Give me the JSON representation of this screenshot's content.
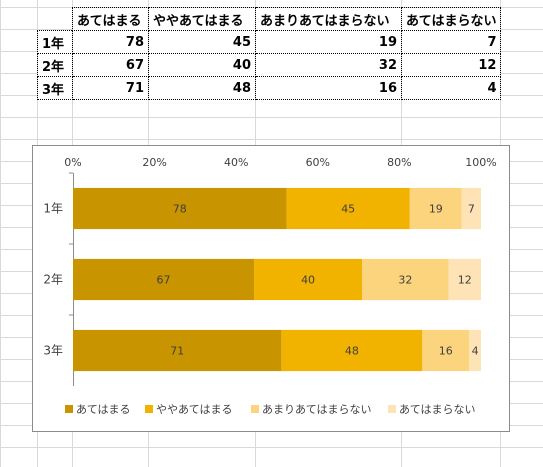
{
  "table": {
    "headers": [
      "",
      "あてはまる",
      "ややあてはまる",
      "あまりあてはまらない",
      "あてはまらない"
    ],
    "rows": [
      {
        "label": "1年",
        "values": [
          78,
          45,
          19,
          7
        ]
      },
      {
        "label": "2年",
        "values": [
          67,
          40,
          32,
          12
        ]
      },
      {
        "label": "3年",
        "values": [
          71,
          48,
          16,
          4
        ]
      }
    ]
  },
  "chart_data": {
    "type": "bar",
    "orientation": "horizontal",
    "stacking": "percent",
    "categories": [
      "1年",
      "2年",
      "3年"
    ],
    "series": [
      {
        "name": "あてはまる",
        "values": [
          78,
          67,
          71
        ],
        "color": "#c89400"
      },
      {
        "name": "ややあてはまる",
        "values": [
          45,
          40,
          48
        ],
        "color": "#f2b200"
      },
      {
        "name": "あまりあてはまらない",
        "values": [
          19,
          32,
          16
        ],
        "color": "#fcd47e"
      },
      {
        "name": "あてはまらない",
        "values": [
          7,
          12,
          4
        ],
        "color": "#fde3b5"
      }
    ],
    "x_ticks": [
      "0%",
      "20%",
      "40%",
      "60%",
      "80%",
      "100%"
    ],
    "xlim": [
      0,
      100
    ],
    "x_axis_position": "top",
    "title": "",
    "xlabel": "",
    "ylabel": "",
    "grid": false,
    "legend_position": "bottom"
  }
}
